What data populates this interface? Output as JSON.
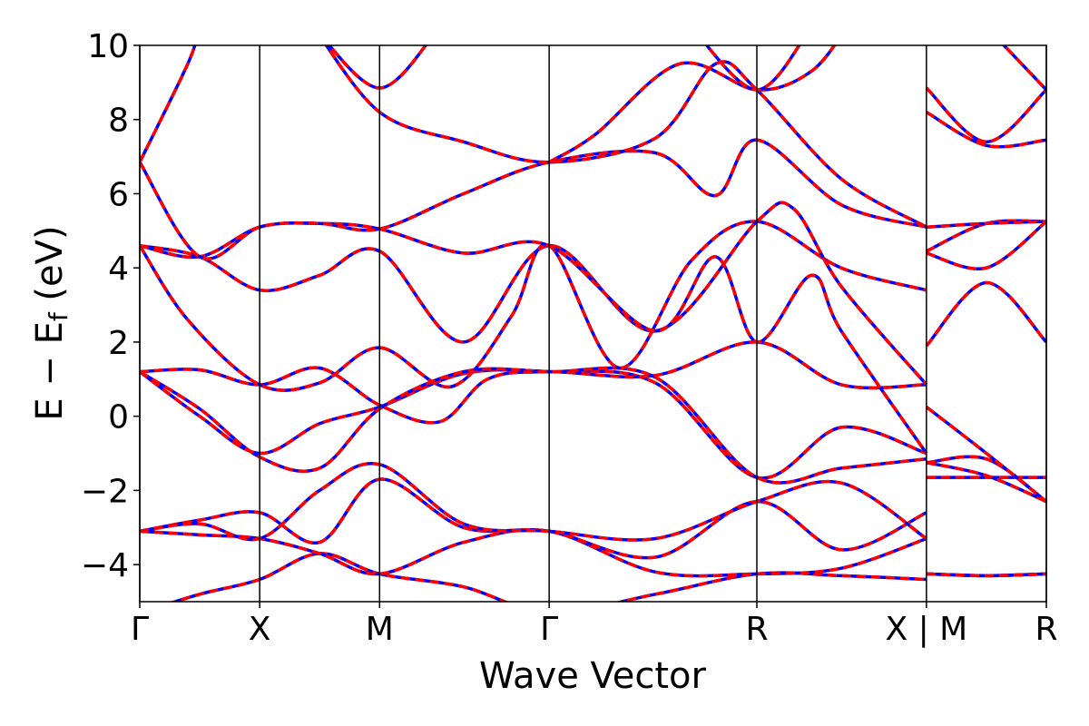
{
  "chart_data": {
    "type": "line",
    "xlabel": "Wave Vector",
    "ylabel": "E − E_f (eV)",
    "ylabel_main": "E − E",
    "ylabel_sub": "f",
    "ylabel_unit": " (eV)",
    "ylim": [
      -5,
      10
    ],
    "y_ticks": [
      {
        "value": 10,
        "label": "10"
      },
      {
        "value": 8,
        "label": "8"
      },
      {
        "value": 6,
        "label": "6"
      },
      {
        "value": 4,
        "label": "4"
      },
      {
        "value": 2,
        "label": "2"
      },
      {
        "value": 0,
        "label": "0"
      },
      {
        "value": -2,
        "label": "−2"
      },
      {
        "value": -4,
        "label": "−4"
      }
    ],
    "k_points": [
      {
        "pos": 0.0,
        "label": "Γ"
      },
      {
        "pos": 1.0,
        "label": "X"
      },
      {
        "pos": 2.0,
        "label": "M"
      },
      {
        "pos": 3.414,
        "label": "Γ"
      },
      {
        "pos": 5.146,
        "label": "R"
      },
      {
        "pos": 6.56,
        "label": "X | M"
      },
      {
        "pos": 7.56,
        "label": "R"
      }
    ],
    "xlim": [
      0,
      7.56
    ],
    "grid": false,
    "legend": "none",
    "series_style": [
      {
        "color": "#0000ff",
        "dash": "none",
        "width": 3.5
      },
      {
        "color": "#ff0000",
        "dash": "dashed",
        "width": 3.5
      }
    ],
    "bands": [
      [
        [
          0,
          -5.3
        ],
        [
          0.5,
          -4.8
        ],
        [
          1.0,
          -4.4
        ],
        [
          1.5,
          -3.7
        ],
        [
          2.0,
          -4.25
        ],
        [
          2.7,
          -4.6
        ],
        [
          3.414,
          -5.3
        ],
        [
          4.3,
          -4.8
        ],
        [
          5.146,
          -4.25
        ],
        [
          5.85,
          -4.3
        ],
        [
          6.56,
          -4.4
        ],
        [
          6.56,
          -4.25
        ],
        [
          7.06,
          -4.3
        ],
        [
          7.56,
          -4.25
        ]
      ],
      [
        [
          0,
          -3.1
        ],
        [
          0.5,
          -3.2
        ],
        [
          1.0,
          -3.3
        ],
        [
          1.5,
          -3.7
        ],
        [
          2.0,
          -4.25
        ],
        [
          2.7,
          -3.4
        ],
        [
          3.414,
          -3.1
        ],
        [
          4.3,
          -4.2
        ],
        [
          5.146,
          -4.25
        ],
        [
          5.85,
          -4.1
        ],
        [
          6.56,
          -3.3
        ],
        [
          6.56,
          -1.65
        ],
        [
          7.06,
          -1.65
        ],
        [
          7.56,
          -1.65
        ]
      ],
      [
        [
          0,
          -3.1
        ],
        [
          0.5,
          -2.8
        ],
        [
          1.0,
          -2.6
        ],
        [
          1.5,
          -3.4
        ],
        [
          2.0,
          -1.7
        ],
        [
          2.7,
          -3.0
        ],
        [
          3.414,
          -3.1
        ],
        [
          4.3,
          -3.8
        ],
        [
          5.146,
          -2.3
        ],
        [
          5.85,
          -3.6
        ],
        [
          6.56,
          -2.6
        ],
        [
          6.56,
          -1.25
        ],
        [
          7.06,
          -1.15
        ],
        [
          7.56,
          -2.3
        ]
      ],
      [
        [
          0,
          -3.1
        ],
        [
          0.5,
          -2.9
        ],
        [
          1.0,
          -3.3
        ],
        [
          1.5,
          -2.0
        ],
        [
          2.0,
          -1.3
        ],
        [
          2.7,
          -2.9
        ],
        [
          3.414,
          -3.1
        ],
        [
          4.3,
          -3.3
        ],
        [
          5.146,
          -2.3
        ],
        [
          5.85,
          -1.8
        ],
        [
          6.56,
          -3.3
        ],
        [
          6.56,
          -1.25
        ],
        [
          7.06,
          -1.6
        ],
        [
          7.56,
          -2.3
        ]
      ],
      [
        [
          0,
          1.2
        ],
        [
          0.5,
          0.0
        ],
        [
          1.0,
          -1.0
        ],
        [
          1.5,
          -0.2
        ],
        [
          2.0,
          0.25
        ],
        [
          2.7,
          1.15
        ],
        [
          3.414,
          1.2
        ],
        [
          4.3,
          0.9
        ],
        [
          5.146,
          -1.65
        ],
        [
          5.85,
          -0.3
        ],
        [
          6.56,
          -1.0
        ],
        [
          6.56,
          0.25
        ],
        [
          7.06,
          -1.0
        ],
        [
          7.56,
          -2.3
        ]
      ],
      [
        [
          0,
          1.2
        ],
        [
          0.5,
          0.2
        ],
        [
          1.0,
          -1.1
        ],
        [
          1.5,
          -1.4
        ],
        [
          2.0,
          0.2
        ],
        [
          2.7,
          1.2
        ],
        [
          3.414,
          1.2
        ],
        [
          4.3,
          1.05
        ],
        [
          5.146,
          -1.65
        ],
        [
          5.85,
          -1.4
        ],
        [
          6.56,
          -1.15
        ],
        [
          6.56,
          -4.25
        ],
        [
          7.06,
          -4.3
        ],
        [
          7.56,
          -4.25
        ]
      ],
      [
        [
          0,
          1.2
        ],
        [
          0.5,
          1.25
        ],
        [
          1.0,
          0.85
        ],
        [
          1.5,
          1.3
        ],
        [
          2.0,
          0.3
        ],
        [
          2.5,
          -0.15
        ],
        [
          2.9,
          1.0
        ],
        [
          3.414,
          1.2
        ],
        [
          4.3,
          1.1
        ],
        [
          5.146,
          2.0
        ],
        [
          5.85,
          0.85
        ],
        [
          6.56,
          0.85
        ],
        [
          6.56,
          1.9
        ],
        [
          7.06,
          3.6
        ],
        [
          7.56,
          2.0
        ]
      ],
      [
        [
          0,
          4.6
        ],
        [
          0.4,
          2.6
        ],
        [
          1.0,
          0.85
        ],
        [
          1.5,
          0.9
        ],
        [
          2.0,
          1.85
        ],
        [
          2.6,
          0.8
        ],
        [
          3.1,
          2.7
        ],
        [
          3.414,
          4.6
        ],
        [
          4.0,
          1.3
        ],
        [
          4.6,
          4.2
        ],
        [
          5.146,
          5.25
        ],
        [
          5.85,
          4.0
        ],
        [
          6.56,
          3.4
        ],
        [
          6.56,
          4.4
        ],
        [
          7.06,
          4.0
        ],
        [
          7.56,
          5.25
        ]
      ],
      [
        [
          0,
          4.6
        ],
        [
          0.5,
          4.3
        ],
        [
          1.0,
          3.4
        ],
        [
          1.5,
          3.8
        ],
        [
          2.0,
          4.45
        ],
        [
          2.7,
          2.0
        ],
        [
          3.414,
          4.6
        ],
        [
          4.3,
          2.3
        ],
        [
          5.146,
          5.25
        ],
        [
          5.45,
          5.6
        ],
        [
          5.85,
          3.5
        ],
        [
          6.56,
          0.85
        ],
        [
          6.56,
          4.45
        ],
        [
          7.06,
          5.2
        ],
        [
          7.56,
          5.25
        ]
      ],
      [
        [
          0,
          4.6
        ],
        [
          0.5,
          4.3
        ],
        [
          1.0,
          5.1
        ],
        [
          1.5,
          5.2
        ],
        [
          2.0,
          5.05
        ],
        [
          2.7,
          4.4
        ],
        [
          3.414,
          4.6
        ],
        [
          4.3,
          2.3
        ],
        [
          4.8,
          4.3
        ],
        [
          5.146,
          2.0
        ],
        [
          5.6,
          3.8
        ],
        [
          5.85,
          2.3
        ],
        [
          6.56,
          -1.0
        ],
        [
          6.56,
          5.1
        ],
        [
          7.06,
          5.2
        ],
        [
          7.56,
          5.25
        ]
      ],
      [
        [
          0,
          6.85
        ],
        [
          0.5,
          4.3
        ],
        [
          1.0,
          5.1
        ],
        [
          1.5,
          5.2
        ],
        [
          2.0,
          5.05
        ],
        [
          2.7,
          6.0
        ],
        [
          3.414,
          6.85
        ],
        [
          4.3,
          7.1
        ],
        [
          4.8,
          5.95
        ],
        [
          5.146,
          7.45
        ],
        [
          5.85,
          5.7
        ],
        [
          6.56,
          5.1
        ],
        [
          6.56,
          8.2
        ],
        [
          7.06,
          7.3
        ],
        [
          7.56,
          7.45
        ]
      ],
      [
        [
          0,
          6.85
        ],
        [
          0.4,
          9.5
        ],
        [
          0.5,
          10.5
        ]
      ],
      [
        [
          1.45,
          10.5
        ],
        [
          2.0,
          8.2
        ],
        [
          2.7,
          7.4
        ],
        [
          3.414,
          6.85
        ],
        [
          4.3,
          7.5
        ],
        [
          4.8,
          9.5
        ],
        [
          5.146,
          8.8
        ],
        [
          5.85,
          6.4
        ],
        [
          6.56,
          5.1
        ],
        [
          6.56,
          8.85
        ],
        [
          7.06,
          7.4
        ],
        [
          7.56,
          8.8
        ]
      ],
      [
        [
          1.45,
          10.5
        ],
        [
          2.0,
          8.85
        ],
        [
          2.5,
          10.5
        ]
      ],
      [
        [
          3.414,
          6.85
        ],
        [
          3.8,
          7.6
        ],
        [
          4.5,
          9.5
        ],
        [
          5.146,
          8.8
        ],
        [
          5.6,
          9.3
        ],
        [
          5.9,
          10.5
        ]
      ],
      [
        [
          4.6,
          10.5
        ],
        [
          5.146,
          8.8
        ],
        [
          5.6,
          10.5
        ]
      ],
      [
        [
          7.06,
          10.5
        ],
        [
          7.56,
          8.8
        ]
      ]
    ]
  }
}
